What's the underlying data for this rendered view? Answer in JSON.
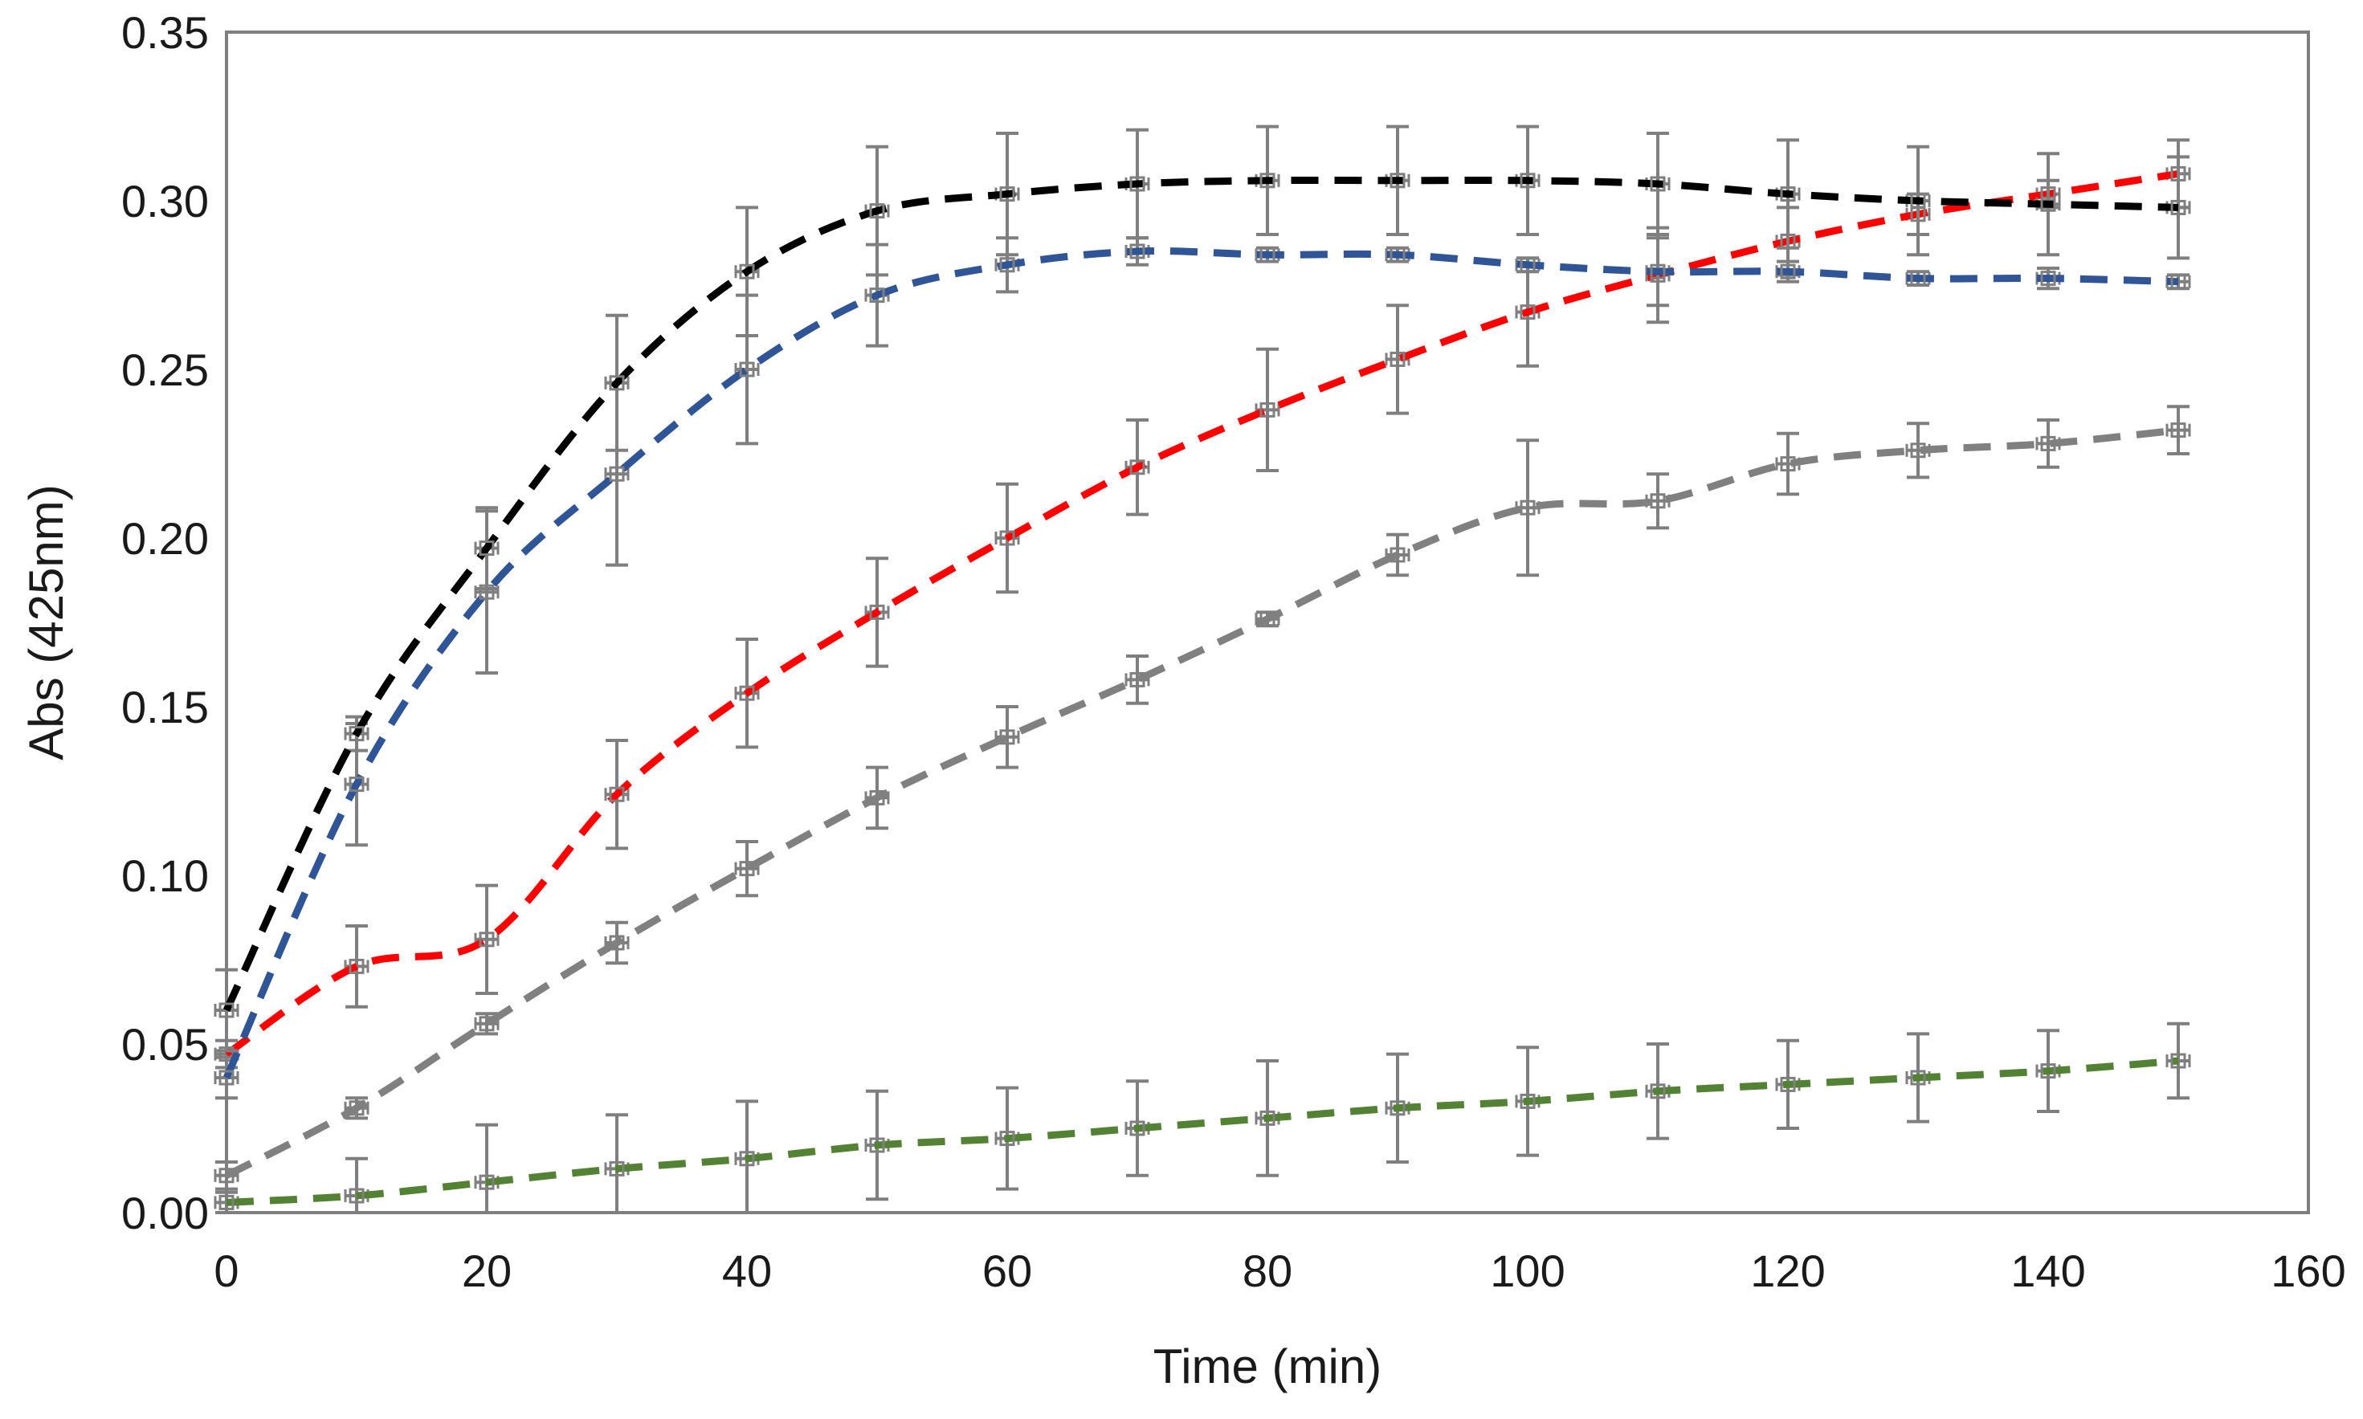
{
  "chart_data": {
    "type": "line",
    "title": "",
    "xlabel": "Time (min)",
    "ylabel": "Abs (425nm)",
    "xlim": [
      0,
      160
    ],
    "ylim": [
      0,
      0.35
    ],
    "grid": false,
    "legend": "none",
    "x_ticks": [
      "0",
      "20",
      "40",
      "60",
      "80",
      "100",
      "120",
      "140",
      "160"
    ],
    "y_ticks": [
      "0.00",
      "0.05",
      "0.10",
      "0.15",
      "0.20",
      "0.25",
      "0.30",
      "0.35"
    ],
    "x": [
      0,
      10,
      20,
      30,
      40,
      50,
      60,
      70,
      80,
      90,
      100,
      110,
      120,
      130,
      140,
      150
    ],
    "series": [
      {
        "name": "black",
        "color": "#000000",
        "values": [
          0.06,
          0.142,
          0.197,
          0.246,
          0.279,
          0.297,
          0.302,
          0.305,
          0.306,
          0.306,
          0.306,
          0.305,
          0.302,
          0.3,
          0.299,
          0.298
        ],
        "errors": [
          0.012,
          0.005,
          0.012,
          0.02,
          0.019,
          0.019,
          0.018,
          0.016,
          0.016,
          0.016,
          0.016,
          0.015,
          0.016,
          0.016,
          0.015,
          0.015
        ]
      },
      {
        "name": "blue",
        "color": "#2f5597",
        "values": [
          0.04,
          0.127,
          0.184,
          0.219,
          0.25,
          0.272,
          0.281,
          0.285,
          0.284,
          0.284,
          0.281,
          0.279,
          0.279,
          0.277,
          0.277,
          0.276
        ],
        "errors": [
          0.006,
          0.018,
          0.024,
          0.027,
          0.022,
          0.015,
          0.008,
          0.004,
          0.002,
          0.002,
          0.002,
          0.01,
          0.003,
          0.002,
          0.003,
          0.002
        ]
      },
      {
        "name": "red",
        "color": "#ff0000",
        "values": [
          0.047,
          0.073,
          0.081,
          0.124,
          0.154,
          0.178,
          0.2,
          0.221,
          0.238,
          0.253,
          0.267,
          0.278,
          0.288,
          0.296,
          0.302,
          0.308
        ],
        "errors": [
          0.004,
          0.012,
          0.016,
          0.016,
          0.016,
          0.016,
          0.016,
          0.014,
          0.018,
          0.016,
          0.016,
          0.014,
          0.01,
          0.006,
          0.004,
          0.01
        ]
      },
      {
        "name": "gray",
        "color": "#808080",
        "values": [
          0.011,
          0.031,
          0.056,
          0.08,
          0.102,
          0.123,
          0.141,
          0.158,
          0.176,
          0.195,
          0.209,
          0.211,
          0.222,
          0.226,
          0.228,
          0.232
        ],
        "errors": [
          0.004,
          0.003,
          0.003,
          0.006,
          0.008,
          0.009,
          0.009,
          0.007,
          0.002,
          0.006,
          0.02,
          0.008,
          0.009,
          0.008,
          0.007,
          0.007
        ]
      },
      {
        "name": "green",
        "color": "#548235",
        "values": [
          0.003,
          0.005,
          0.009,
          0.013,
          0.016,
          0.02,
          0.022,
          0.025,
          0.028,
          0.031,
          0.033,
          0.036,
          0.038,
          0.04,
          0.042,
          0.045
        ],
        "errors": [
          0.003,
          0.011,
          0.017,
          0.016,
          0.017,
          0.016,
          0.015,
          0.014,
          0.017,
          0.016,
          0.016,
          0.014,
          0.013,
          0.013,
          0.012,
          0.011
        ]
      }
    ]
  }
}
